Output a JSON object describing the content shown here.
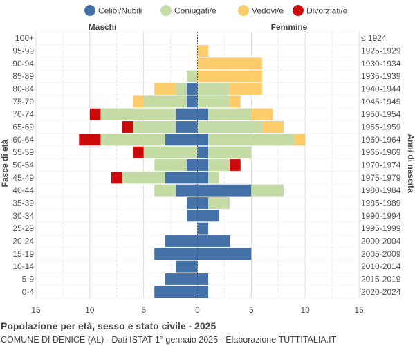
{
  "chart_data": {
    "type": "bar",
    "orientation": "horizontal-population-pyramid",
    "title": "Popolazione per età, sesso e stato civile - 2025",
    "subtitle": "COMUNE DI DENICE (AL) - Dati ISTAT 1° gennaio 2025 - Elaborazione TUTTITALIA.IT",
    "left_label": "Maschi",
    "right_label": "Femmine",
    "ylabel_left": "Fasce di età",
    "ylabel_right": "Anni di nascita",
    "xlim": [
      -15,
      15
    ],
    "x_ticks": [
      -15,
      -10,
      -5,
      0,
      5,
      10,
      15
    ],
    "x_tick_labels": [
      "15",
      "10",
      "5",
      "0",
      "5",
      "10",
      "15"
    ],
    "grid": true,
    "legend_position": "top",
    "series": [
      {
        "name": "Celibi/Nubili",
        "color": "#4472a8"
      },
      {
        "name": "Coniugati/e",
        "color": "#c5dba6"
      },
      {
        "name": "Vedovi/e",
        "color": "#fccb6a"
      },
      {
        "name": "Divorziati/e",
        "color": "#cc0a0a"
      }
    ],
    "age_groups": [
      "100+",
      "95-99",
      "90-94",
      "85-89",
      "80-84",
      "75-79",
      "70-74",
      "65-69",
      "60-64",
      "55-59",
      "50-54",
      "45-49",
      "40-44",
      "35-39",
      "30-34",
      "25-29",
      "20-24",
      "15-19",
      "10-14",
      "5-9",
      "0-4"
    ],
    "birth_years": [
      "≤ 1924",
      "1925-1929",
      "1930-1934",
      "1935-1939",
      "1940-1944",
      "1945-1949",
      "1950-1954",
      "1955-1959",
      "1960-1964",
      "1965-1969",
      "1970-1974",
      "1975-1979",
      "1980-1984",
      "1985-1989",
      "1990-1994",
      "1995-1999",
      "2000-2004",
      "2005-2009",
      "2010-2014",
      "2015-2019",
      "2020-2024"
    ],
    "males": {
      "celibi": [
        0,
        0,
        0,
        0,
        1,
        1,
        2,
        2,
        3,
        0,
        1,
        3,
        2,
        1,
        1,
        0,
        3,
        4,
        2,
        3,
        4
      ],
      "coniugati": [
        0,
        0,
        0,
        1,
        1,
        4,
        7,
        4,
        6,
        5,
        3,
        4,
        2,
        0,
        0,
        0,
        0,
        0,
        0,
        0,
        0
      ],
      "vedovi": [
        0,
        0,
        0,
        0,
        2,
        1,
        0,
        0,
        0,
        0,
        0,
        0,
        0,
        0,
        0,
        0,
        0,
        0,
        0,
        0,
        0
      ],
      "divorziati": [
        0,
        0,
        0,
        0,
        0,
        0,
        1,
        1,
        2,
        1,
        0,
        1,
        0,
        0,
        0,
        0,
        0,
        0,
        0,
        0,
        0
      ]
    },
    "females": {
      "nubili": [
        0,
        0,
        0,
        0,
        0,
        0,
        1,
        0,
        1,
        1,
        1,
        1,
        5,
        1,
        2,
        1,
        3,
        5,
        0,
        1,
        1
      ],
      "coniugate": [
        0,
        0,
        0,
        0,
        3,
        3,
        4,
        6,
        8,
        4,
        2,
        1,
        3,
        2,
        0,
        0,
        0,
        0,
        0,
        0,
        0
      ],
      "vedove": [
        0,
        1,
        6,
        6,
        3,
        1,
        2,
        2,
        1,
        0,
        0,
        0,
        0,
        0,
        0,
        0,
        0,
        0,
        0,
        0,
        0
      ],
      "divorziate": [
        0,
        0,
        0,
        0,
        0,
        0,
        0,
        0,
        0,
        0,
        1,
        0,
        0,
        0,
        0,
        0,
        0,
        0,
        0,
        0,
        0
      ]
    }
  }
}
